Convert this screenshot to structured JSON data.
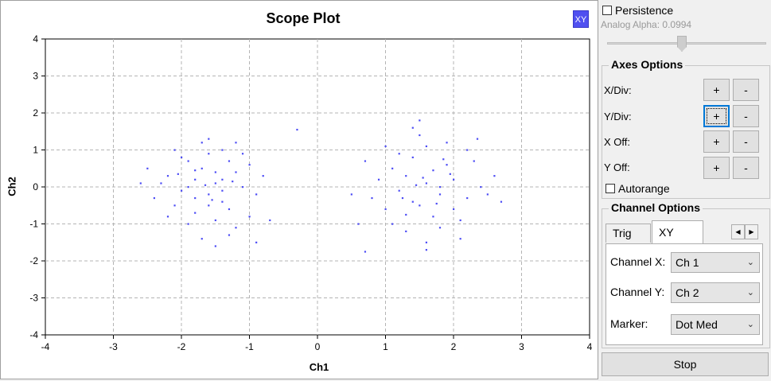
{
  "plot": {
    "title": "Scope Plot",
    "mode_badge": "XY",
    "xlabel": "Ch1",
    "ylabel": "Ch2"
  },
  "chart_data": {
    "type": "scatter",
    "title": "Scope Plot",
    "xlabel": "Ch1",
    "ylabel": "Ch2",
    "xlim": [
      -4,
      4
    ],
    "ylim": [
      -4,
      4
    ],
    "xticks": [
      -4,
      -3,
      -2,
      -1,
      0,
      1,
      2,
      3,
      4
    ],
    "yticks": [
      -4,
      -3,
      -2,
      -1,
      0,
      1,
      2,
      3,
      4
    ],
    "grid": true,
    "marker_color": "#4d4df5",
    "series": [
      {
        "points": [
          [
            -1.8,
            0.2
          ],
          [
            -1.5,
            0.1
          ],
          [
            -1.6,
            -0.2
          ],
          [
            -1.2,
            0.4
          ],
          [
            -2.0,
            -0.1
          ],
          [
            -1.7,
            0.5
          ],
          [
            -1.4,
            -0.4
          ],
          [
            -1.9,
            0.7
          ],
          [
            -1.3,
            -0.6
          ],
          [
            -2.2,
            0.3
          ],
          [
            -1.1,
            0.0
          ],
          [
            -1.6,
            0.9
          ],
          [
            -1.5,
            -0.9
          ],
          [
            -2.1,
            -0.5
          ],
          [
            -1.0,
            0.6
          ],
          [
            -1.8,
            -0.7
          ],
          [
            -1.4,
            1.0
          ],
          [
            -2.3,
            0.1
          ],
          [
            -1.2,
            -1.1
          ],
          [
            -1.7,
            1.2
          ],
          [
            -2.0,
            0.8
          ],
          [
            -1.3,
            0.7
          ],
          [
            -1.9,
            -1.0
          ],
          [
            -1.5,
            0.4
          ],
          [
            -1.6,
            -0.5
          ],
          [
            -2.4,
            -0.3
          ],
          [
            -0.9,
            -0.2
          ],
          [
            -1.1,
            0.9
          ],
          [
            -1.8,
            -0.3
          ],
          [
            -1.4,
            0.2
          ],
          [
            -2.2,
            -0.8
          ],
          [
            -1.0,
            -0.8
          ],
          [
            -1.6,
            1.3
          ],
          [
            -1.3,
            -1.3
          ],
          [
            -2.5,
            0.5
          ],
          [
            -0.8,
            0.3
          ],
          [
            -1.7,
            -1.4
          ],
          [
            -1.2,
            1.2
          ],
          [
            -2.1,
            1.0
          ],
          [
            -1.5,
            -1.6
          ],
          [
            -0.3,
            1.55
          ],
          [
            -2.6,
            0.1
          ],
          [
            -0.9,
            -1.5
          ],
          [
            -1.9,
            0.0
          ],
          [
            -1.4,
            -0.1
          ],
          [
            -1.8,
            0.45
          ],
          [
            -1.55,
            -0.35
          ],
          [
            -1.25,
            0.15
          ],
          [
            -2.05,
            0.35
          ],
          [
            -1.65,
            0.05
          ],
          [
            -0.7,
            -0.9
          ]
        ]
      },
      {
        "points": [
          [
            1.6,
            0.1
          ],
          [
            1.3,
            0.3
          ],
          [
            1.8,
            -0.2
          ],
          [
            1.5,
            -0.5
          ],
          [
            1.9,
            0.6
          ],
          [
            1.2,
            -0.1
          ],
          [
            2.0,
            0.2
          ],
          [
            1.4,
            0.8
          ],
          [
            1.7,
            -0.8
          ],
          [
            2.2,
            -0.3
          ],
          [
            1.1,
            0.5
          ],
          [
            1.6,
            1.1
          ],
          [
            1.8,
            -1.1
          ],
          [
            2.3,
            0.7
          ],
          [
            1.0,
            -0.6
          ],
          [
            1.5,
            1.4
          ],
          [
            2.1,
            -0.9
          ],
          [
            1.3,
            -1.2
          ],
          [
            1.9,
            1.2
          ],
          [
            2.4,
            0.0
          ],
          [
            0.9,
            0.2
          ],
          [
            1.7,
            0.45
          ],
          [
            1.4,
            -0.4
          ],
          [
            2.0,
            -0.6
          ],
          [
            1.2,
            0.9
          ],
          [
            1.6,
            -1.5
          ],
          [
            2.5,
            -0.2
          ],
          [
            0.8,
            -0.3
          ],
          [
            1.5,
            1.8
          ],
          [
            2.2,
            1.0
          ],
          [
            1.1,
            -1.0
          ],
          [
            1.8,
            0.0
          ],
          [
            1.3,
            -0.75
          ],
          [
            2.6,
            0.3
          ],
          [
            0.7,
            0.7
          ],
          [
            1.6,
            -1.7
          ],
          [
            0.5,
            -0.2
          ],
          [
            2.7,
            -0.4
          ],
          [
            1.0,
            1.1
          ],
          [
            2.1,
            -1.4
          ],
          [
            1.4,
            1.6
          ],
          [
            0.6,
            -1.0
          ],
          [
            0.7,
            -1.75
          ],
          [
            2.35,
            1.3
          ],
          [
            1.55,
            0.25
          ],
          [
            1.75,
            -0.45
          ],
          [
            1.45,
            0.05
          ],
          [
            1.95,
            0.35
          ],
          [
            1.25,
            -0.3
          ],
          [
            1.85,
            0.75
          ]
        ]
      }
    ]
  },
  "sidebar": {
    "persistence_label": "Persistence",
    "persistence_checked": false,
    "alpha_label": "Analog Alpha: 0.0994",
    "alpha_value": 0.0994,
    "axes_title": "Axes Options",
    "axes_rows": [
      {
        "label": "X/Div:",
        "plus": "+",
        "minus": "-"
      },
      {
        "label": "Y/Div:",
        "plus": "+",
        "minus": "-"
      },
      {
        "label": "X Off:",
        "plus": "+",
        "minus": "-"
      },
      {
        "label": "Y Off:",
        "plus": "+",
        "minus": "-"
      }
    ],
    "autorange_label": "Autorange",
    "autorange_checked": false,
    "channel_title": "Channel Options",
    "tabs": [
      "Trig",
      "XY"
    ],
    "active_tab": "XY",
    "channel_x_label": "Channel X:",
    "channel_x_value": "Ch 1",
    "channel_y_label": "Channel Y:",
    "channel_y_value": "Ch 2",
    "marker_label": "Marker:",
    "marker_value": "Dot Med",
    "stop_label": "Stop"
  },
  "colors": {
    "accent": "#0078d7",
    "badge": "#5050f0",
    "points": "#4d4df5"
  }
}
